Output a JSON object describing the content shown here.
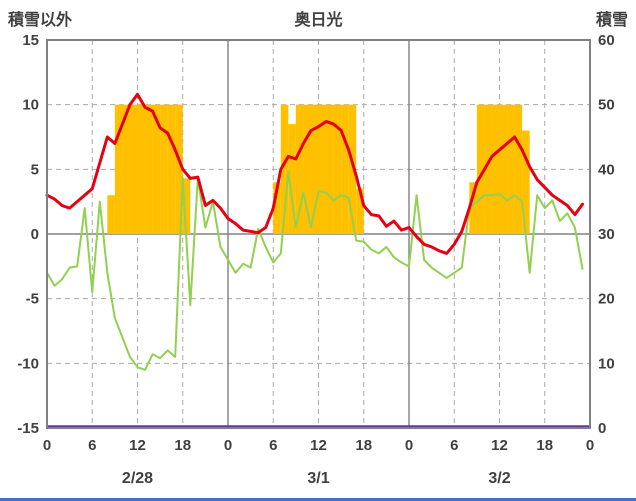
{
  "header": {
    "left_label": "積雪以外",
    "title": "奥日光",
    "right_label": "積雪"
  },
  "colors": {
    "red_line": "#e60012",
    "green_line": "#92d050",
    "sunshine_bar": "#ffc000",
    "purple_line": "#7030a0",
    "border_gray": "#808080",
    "grid_gray": "#aaaaaa",
    "text": "#404040",
    "bottom_rule_blue": "#4472c4"
  },
  "chart_data": {
    "type": "line",
    "title": "奥日光",
    "grid": true,
    "left_axis": {
      "label": "積雪以外",
      "min": -15,
      "max": 15,
      "ticks": [
        15,
        10,
        5,
        0,
        -5,
        -10,
        -15
      ]
    },
    "right_axis": {
      "label": "積雪",
      "min": 0,
      "max": 60,
      "ticks": [
        60,
        50,
        40,
        30,
        20,
        10,
        0
      ]
    },
    "x_axis": {
      "total_hours": 72,
      "tick_hours": [
        0,
        6,
        12,
        18,
        24,
        30,
        36,
        42,
        48,
        54,
        60,
        66,
        72
      ],
      "tick_labels": [
        "0",
        "6",
        "12",
        "18",
        "0",
        "6",
        "12",
        "18",
        "0",
        "6",
        "12",
        "18",
        "0"
      ],
      "date_labels": [
        {
          "label": "2/28",
          "hour": 12
        },
        {
          "label": "3/1",
          "hour": 36
        },
        {
          "label": "3/2",
          "hour": 60
        }
      ]
    },
    "series": [
      {
        "name": "sunshine-bars",
        "type": "bar",
        "axis": "left",
        "color": "#ffc000",
        "values": [
          0,
          0,
          0,
          0,
          0,
          0,
          0,
          0,
          3,
          10,
          10,
          10,
          10,
          10,
          10,
          10,
          10,
          10,
          4.3,
          0,
          0,
          0,
          0,
          0,
          0,
          0,
          0,
          0,
          0,
          0,
          4,
          10,
          8.5,
          10,
          10,
          10,
          10,
          10,
          10,
          10,
          10,
          3.5,
          0,
          0,
          0,
          0,
          0,
          0,
          0,
          0,
          0,
          0,
          0,
          0,
          0,
          0,
          4,
          10,
          10,
          10,
          10,
          10,
          10,
          8,
          0,
          0,
          0,
          0,
          0,
          0,
          0,
          0
        ]
      },
      {
        "name": "purple-line",
        "type": "line",
        "axis": "right",
        "color": "#7030a0",
        "constant": 0
      },
      {
        "name": "green-line",
        "type": "line",
        "axis": "left",
        "color": "#92d050",
        "values": [
          -3,
          -4,
          -3.5,
          -2.6,
          -2.5,
          2,
          -4.5,
          2.5,
          -3,
          -6.5,
          -8,
          -9.5,
          -10.3,
          -10.5,
          -9.3,
          -9.6,
          -9,
          -9.5,
          4.3,
          -5.5,
          4.3,
          0.5,
          2.5,
          -1,
          -2,
          -3,
          -2.3,
          -2.6,
          0.4,
          -1,
          -2.2,
          -1.5,
          4.8,
          0.5,
          3.2,
          0.5,
          3.3,
          3.2,
          2.6,
          3,
          2.8,
          -0.5,
          -0.6,
          -1.2,
          -1.5,
          -1,
          -1.8,
          -2.2,
          -2.5,
          3,
          -2,
          -2.6,
          -3,
          -3.4,
          -3,
          -2.6,
          2,
          2.5,
          3,
          3,
          3.1,
          2.6,
          3,
          2.5,
          -3,
          3,
          2,
          2.6,
          1,
          1.6,
          0.5,
          -2.7
        ]
      },
      {
        "name": "red-line",
        "type": "line",
        "axis": "left",
        "color": "#e60012",
        "values": [
          3,
          2.7,
          2.2,
          2,
          2.5,
          3,
          3.5,
          5.5,
          7.5,
          7,
          8.5,
          10,
          10.8,
          9.8,
          9.5,
          8.2,
          7.8,
          6.5,
          5,
          4.3,
          4.4,
          2.2,
          2.6,
          2,
          1.2,
          0.8,
          0.3,
          0.2,
          0.1,
          0.5,
          2,
          5,
          6,
          5.8,
          7,
          8,
          8.3,
          8.7,
          8.5,
          8,
          6.5,
          4.5,
          2.2,
          1.5,
          1.4,
          0.6,
          1,
          0.3,
          0.5,
          -0.2,
          -0.8,
          -1,
          -1.3,
          -1.5,
          -0.8,
          0.2,
          2,
          4,
          5,
          6,
          6.5,
          7,
          7.5,
          6.5,
          5.2,
          4.2,
          3.6,
          3,
          2.6,
          2.2,
          1.5,
          2.3
        ]
      }
    ]
  }
}
